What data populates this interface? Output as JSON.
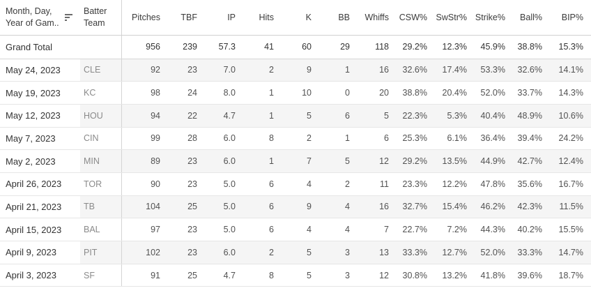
{
  "table": {
    "date_header": {
      "line1": "Month, Day,",
      "line2": "Year of Gam.."
    },
    "team_header": {
      "line1": "Batter",
      "line2": "Team"
    },
    "sort_icon": "sort-descending",
    "columns": [
      {
        "id": "pitches",
        "label": "Pitches"
      },
      {
        "id": "tbf",
        "label": "TBF"
      },
      {
        "id": "ip",
        "label": "IP"
      },
      {
        "id": "hits",
        "label": "Hits"
      },
      {
        "id": "k",
        "label": "K"
      },
      {
        "id": "bb",
        "label": "BB"
      },
      {
        "id": "whiffs",
        "label": "Whiffs"
      },
      {
        "id": "csw-pct",
        "label": "CSW%"
      },
      {
        "id": "swstr-pct",
        "label": "SwStr%"
      },
      {
        "id": "strike-pct",
        "label": "Strike%"
      },
      {
        "id": "ball-pct",
        "label": "Ball%"
      },
      {
        "id": "bip-pct",
        "label": "BIP%"
      }
    ],
    "grand_total": {
      "label": "Grand Total",
      "values": [
        "956",
        "239",
        "57.3",
        "41",
        "60",
        "29",
        "118",
        "29.2%",
        "12.3%",
        "45.9%",
        "38.8%",
        "15.3%"
      ]
    },
    "rows": [
      {
        "date": "May 24, 2023",
        "team": "CLE",
        "values": [
          "92",
          "23",
          "7.0",
          "2",
          "9",
          "1",
          "16",
          "32.6%",
          "17.4%",
          "53.3%",
          "32.6%",
          "14.1%"
        ]
      },
      {
        "date": "May 19, 2023",
        "team": "KC",
        "values": [
          "98",
          "24",
          "8.0",
          "1",
          "10",
          "0",
          "20",
          "38.8%",
          "20.4%",
          "52.0%",
          "33.7%",
          "14.3%"
        ]
      },
      {
        "date": "May 12, 2023",
        "team": "HOU",
        "values": [
          "94",
          "22",
          "4.7",
          "1",
          "5",
          "6",
          "5",
          "22.3%",
          "5.3%",
          "40.4%",
          "48.9%",
          "10.6%"
        ]
      },
      {
        "date": "May 7, 2023",
        "team": "CIN",
        "values": [
          "99",
          "28",
          "6.0",
          "8",
          "2",
          "1",
          "6",
          "25.3%",
          "6.1%",
          "36.4%",
          "39.4%",
          "24.2%"
        ]
      },
      {
        "date": "May 2, 2023",
        "team": "MIN",
        "values": [
          "89",
          "23",
          "6.0",
          "1",
          "7",
          "5",
          "12",
          "29.2%",
          "13.5%",
          "44.9%",
          "42.7%",
          "12.4%"
        ]
      },
      {
        "date": "April 26, 2023",
        "team": "TOR",
        "values": [
          "90",
          "23",
          "5.0",
          "6",
          "4",
          "2",
          "11",
          "23.3%",
          "12.2%",
          "47.8%",
          "35.6%",
          "16.7%"
        ]
      },
      {
        "date": "April 21, 2023",
        "team": "TB",
        "values": [
          "104",
          "25",
          "5.0",
          "6",
          "9",
          "4",
          "16",
          "32.7%",
          "15.4%",
          "46.2%",
          "42.3%",
          "11.5%"
        ]
      },
      {
        "date": "April 15, 2023",
        "team": "BAL",
        "values": [
          "97",
          "23",
          "5.0",
          "6",
          "4",
          "4",
          "7",
          "22.7%",
          "7.2%",
          "44.3%",
          "40.2%",
          "15.5%"
        ]
      },
      {
        "date": "April 9, 2023",
        "team": "PIT",
        "values": [
          "102",
          "23",
          "6.0",
          "2",
          "5",
          "3",
          "13",
          "33.3%",
          "12.7%",
          "52.0%",
          "33.3%",
          "14.7%"
        ]
      },
      {
        "date": "April 3, 2023",
        "team": "SF",
        "values": [
          "91",
          "25",
          "4.7",
          "8",
          "5",
          "3",
          "12",
          "30.8%",
          "13.2%",
          "41.8%",
          "39.6%",
          "18.7%"
        ]
      }
    ]
  },
  "colors": {
    "row_banding": "#f5f5f5",
    "column_divider": "#d4d4d4",
    "row_border": "#e6e6e6",
    "header_border": "#cfcfcf",
    "header_text": "#3b3b3b",
    "date_text": "#333333",
    "team_text": "#8a8a8a",
    "value_text": "#525252"
  }
}
